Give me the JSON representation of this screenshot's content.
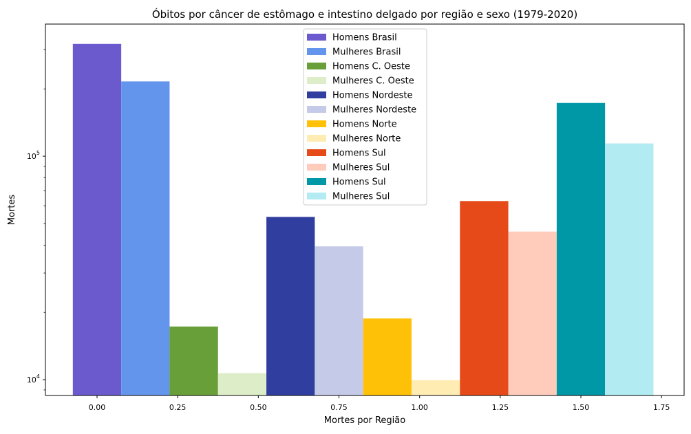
{
  "chart_data": {
    "type": "bar",
    "title": "Óbitos por câncer de estômago e intestino delgado por região e sexo (1979-2020)",
    "xlabel": "Mortes por Região",
    "ylabel": "Mortes",
    "yscale": "log",
    "ylim": [
      8500,
      390000
    ],
    "xlim": [
      -0.16,
      1.82
    ],
    "bar_width": 0.15,
    "x_ticks": [
      {
        "value": 0.0,
        "label": "0.00"
      },
      {
        "value": 0.25,
        "label": "0.25"
      },
      {
        "value": 0.5,
        "label": "0.50"
      },
      {
        "value": 0.75,
        "label": "0.75"
      },
      {
        "value": 1.0,
        "label": "1.00"
      },
      {
        "value": 1.25,
        "label": "1.25"
      },
      {
        "value": 1.5,
        "label": "1.50"
      },
      {
        "value": 1.75,
        "label": "1.75"
      }
    ],
    "y_ticks": [
      {
        "value": 10000,
        "base": "10",
        "exp": "4"
      },
      {
        "value": 100000,
        "base": "10",
        "exp": "5"
      }
    ],
    "grid": false,
    "legend_position": "top-center",
    "series": [
      {
        "name": "Homens Brasil",
        "x": 0.0,
        "value": 318000,
        "color": "#6a5acd"
      },
      {
        "name": "Mulheres Brasil",
        "x": 0.15,
        "value": 216000,
        "color": "#6495ed"
      },
      {
        "name": "Homens C. Oeste",
        "x": 0.3,
        "value": 17300,
        "color": "#689f38"
      },
      {
        "name": "Mulheres C. Oeste",
        "x": 0.45,
        "value": 10700,
        "color": "#dcedc8"
      },
      {
        "name": "Homens Nordeste",
        "x": 0.6,
        "value": 53500,
        "color": "#303f9f"
      },
      {
        "name": "Mulheres Nordeste",
        "x": 0.75,
        "value": 39500,
        "color": "#c5cae9"
      },
      {
        "name": "Homens Norte",
        "x": 0.9,
        "value": 18800,
        "color": "#ffc107"
      },
      {
        "name": "Mulheres Norte",
        "x": 1.05,
        "value": 9950,
        "color": "#ffecb3"
      },
      {
        "name": "Homens Sul",
        "x": 1.2,
        "value": 63000,
        "color": "#e64a19"
      },
      {
        "name": "Mulheres Sul",
        "x": 1.35,
        "value": 46000,
        "color": "#ffccbc"
      },
      {
        "name": "Homens Sul",
        "x": 1.5,
        "value": 173000,
        "color": "#0097a7"
      },
      {
        "name": "Mulheres Sul",
        "x": 1.65,
        "value": 114000,
        "color": "#b2ebf2"
      }
    ]
  }
}
